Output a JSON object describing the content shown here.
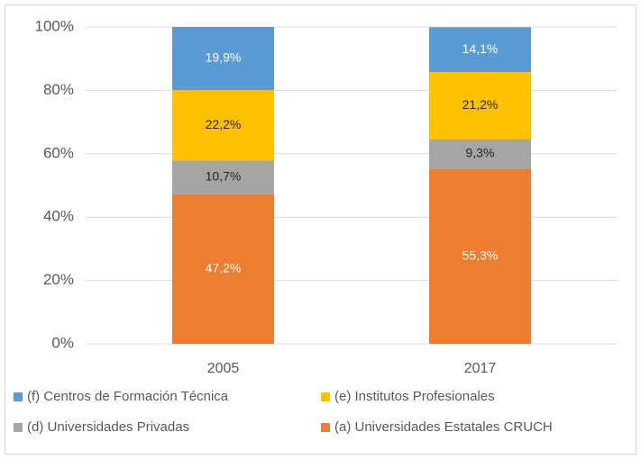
{
  "chart_data": {
    "type": "stacked_bar",
    "categories": [
      "2005",
      "2017"
    ],
    "series": [
      {
        "name": "(a) Universidades Estatales CRUCH",
        "color": "#ed7d31",
        "label_color": "#ffffff",
        "values": [
          47.2,
          55.3
        ],
        "value_labels": [
          "47,2%",
          "55,3%"
        ]
      },
      {
        "name": "(d) Universidades Privadas",
        "color": "#a5a5a5",
        "label_color": "#262626",
        "values": [
          10.7,
          9.3
        ],
        "value_labels": [
          "10,7%",
          "9,3%"
        ]
      },
      {
        "name": "(e) Institutos Profesionales",
        "color": "#ffc000",
        "label_color": "#262626",
        "values": [
          22.2,
          21.2
        ],
        "value_labels": [
          "22,2%",
          "21,2%"
        ]
      },
      {
        "name": "(f) Centros de Formación Técnica",
        "color": "#5b9bd5",
        "label_color": "#ffffff",
        "values": [
          19.9,
          14.1
        ],
        "value_labels": [
          "19,9%",
          "14,1%"
        ]
      }
    ],
    "ylim": [
      0,
      100
    ],
    "yticks": [
      {
        "value": 0,
        "label": "0%"
      },
      {
        "value": 20,
        "label": "20%"
      },
      {
        "value": 40,
        "label": "40%"
      },
      {
        "value": 60,
        "label": "60%"
      },
      {
        "value": 80,
        "label": "80%"
      },
      {
        "value": 100,
        "label": "100%"
      }
    ],
    "grid": true,
    "legend": "bottom"
  }
}
